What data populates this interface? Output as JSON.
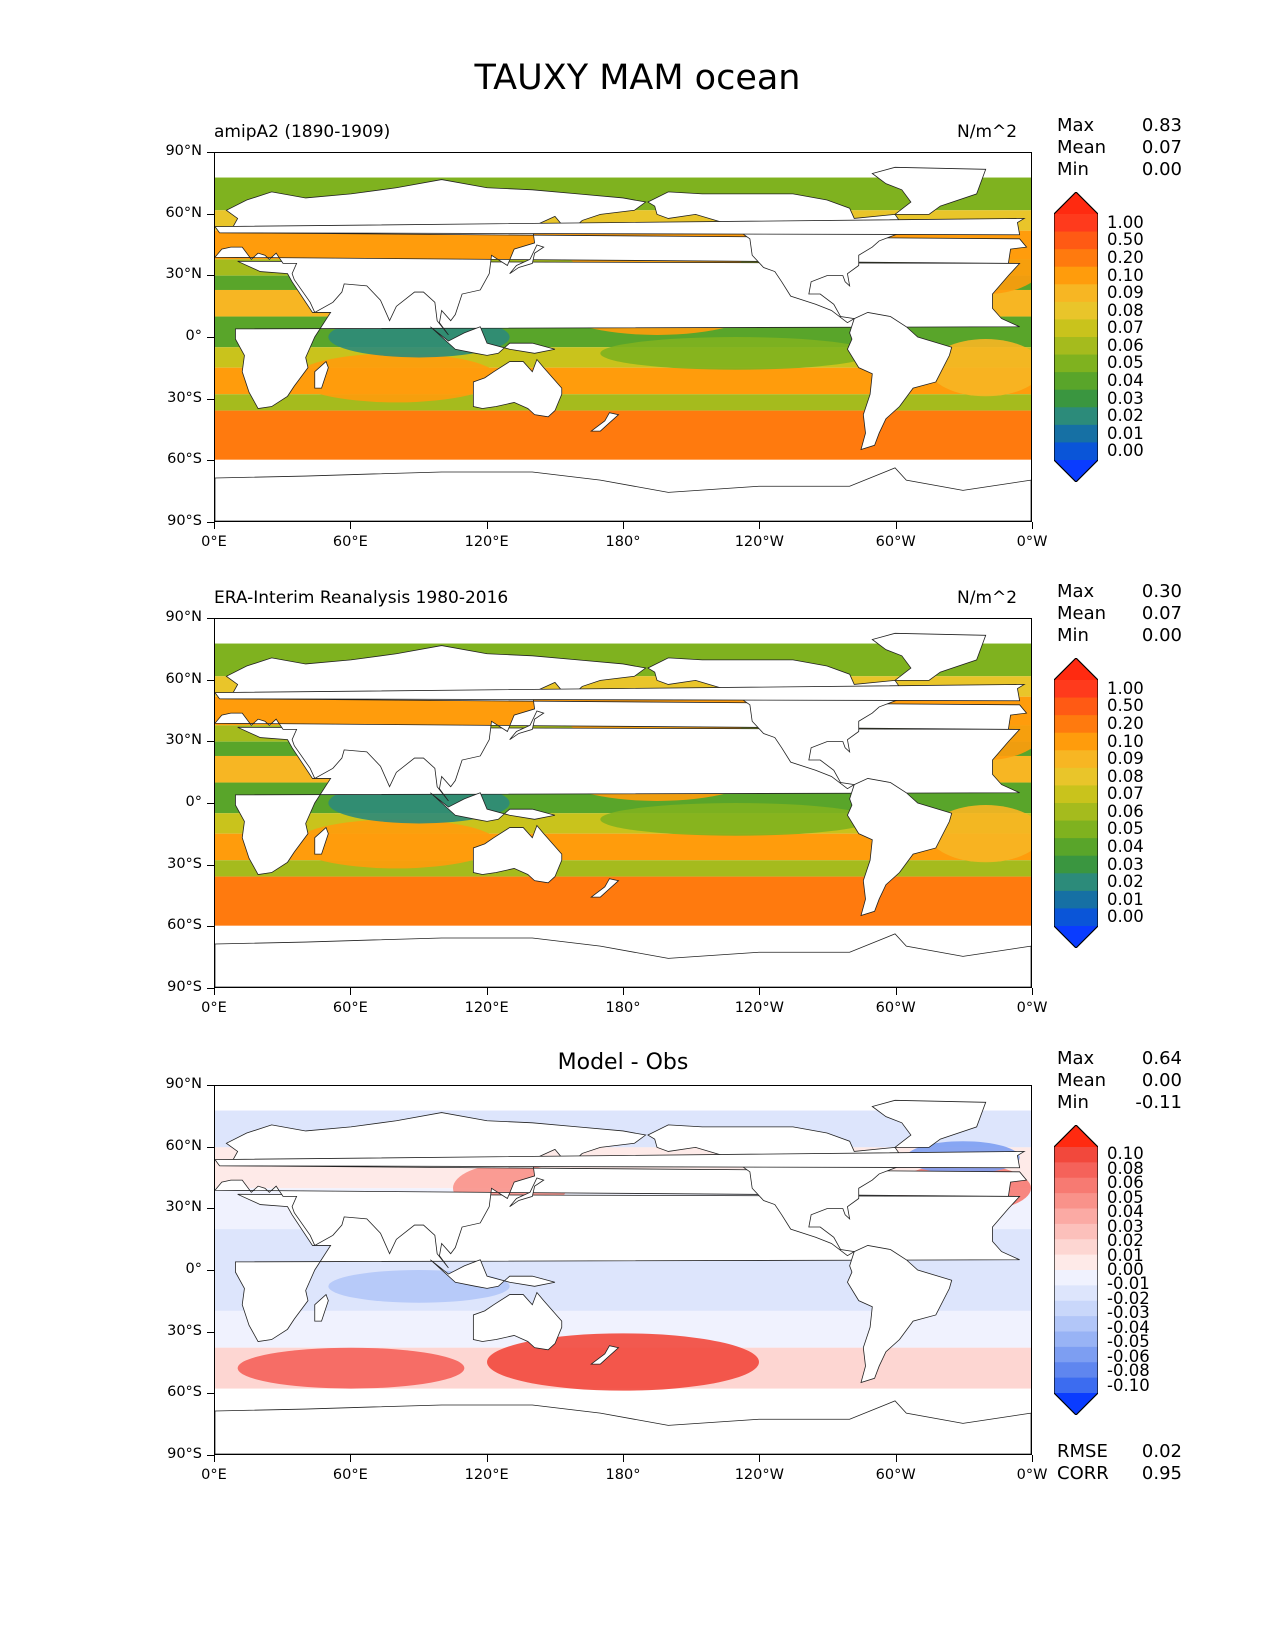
{
  "figure": {
    "title": "TAUXY MAM ocean"
  },
  "axes": {
    "y_ticks": [
      "90°N",
      "60°N",
      "30°N",
      "0°",
      "30°S",
      "60°S",
      "90°S"
    ],
    "x_ticks": [
      "0°E",
      "60°E",
      "120°E",
      "180°",
      "120°W",
      "60°W",
      "0°W"
    ]
  },
  "panels": [
    {
      "left_title": "amipA2 (1890-1909)",
      "units": "N/m^2",
      "center_title": "",
      "stats": {
        "max_label": "Max",
        "max": "0.83",
        "mean_label": "Mean",
        "mean": "0.07",
        "min_label": "Min",
        "min": "0.00"
      },
      "colorbar": {
        "labels": [
          "1.00",
          "0.50",
          "0.20",
          "0.10",
          "0.09",
          "0.08",
          "0.07",
          "0.06",
          "0.05",
          "0.04",
          "0.03",
          "0.02",
          "0.01",
          "0.00"
        ],
        "colors": [
          "#ff3a1c",
          "#ff5a14",
          "#ff7a0e",
          "#ff9c0c",
          "#f7b623",
          "#e9c52a",
          "#c9c31c",
          "#a5bb1d",
          "#7fb21f",
          "#59a52a",
          "#3a9640",
          "#2c8b7a",
          "#1670a4",
          "#0a55d8"
        ],
        "top_color": "#ff2a10",
        "bottom_color": "#0a3cff"
      }
    },
    {
      "left_title": "ERA-Interim Reanalysis 1980-2016",
      "units": "N/m^2",
      "center_title": "",
      "stats": {
        "max_label": "Max",
        "max": "0.30",
        "mean_label": "Mean",
        "mean": "0.07",
        "min_label": "Min",
        "min": "0.00"
      },
      "colorbar": {
        "labels": [
          "1.00",
          "0.50",
          "0.20",
          "0.10",
          "0.09",
          "0.08",
          "0.07",
          "0.06",
          "0.05",
          "0.04",
          "0.03",
          "0.02",
          "0.01",
          "0.00"
        ],
        "colors": [
          "#ff3a1c",
          "#ff5a14",
          "#ff7a0e",
          "#ff9c0c",
          "#f7b623",
          "#e9c52a",
          "#c9c31c",
          "#a5bb1d",
          "#7fb21f",
          "#59a52a",
          "#3a9640",
          "#2c8b7a",
          "#1670a4",
          "#0a55d8"
        ],
        "top_color": "#ff2a10",
        "bottom_color": "#0a3cff"
      }
    },
    {
      "left_title": "",
      "units": "",
      "center_title": "Model - Obs",
      "stats": {
        "max_label": "Max",
        "max": "0.64",
        "mean_label": "Mean",
        "mean": "0.00",
        "min_label": "Min",
        "min": "-0.11"
      },
      "colorbar": {
        "labels": [
          "0.10",
          "0.08",
          "0.06",
          "0.05",
          "0.04",
          "0.03",
          "0.02",
          "0.01",
          "0.00",
          "-0.01",
          "-0.02",
          "-0.03",
          "-0.04",
          "-0.05",
          "-0.06",
          "-0.08",
          "-0.10"
        ],
        "colors": [
          "#f2483c",
          "#f5625a",
          "#f77a72",
          "#f9928a",
          "#fbaaa4",
          "#fcc0bb",
          "#fdd6d2",
          "#feeae8",
          "#f0f2fe",
          "#dde5fc",
          "#c9d7fa",
          "#b2c6f8",
          "#98b3f5",
          "#7d9ef2",
          "#5f86ef",
          "#3c6cf0"
        ],
        "top_color": "#ff2a10",
        "bottom_color": "#0a3cff",
        "rmse_label": "RMSE",
        "rmse": "0.02",
        "corr_label": "CORR",
        "corr": "0.95"
      }
    }
  ]
}
